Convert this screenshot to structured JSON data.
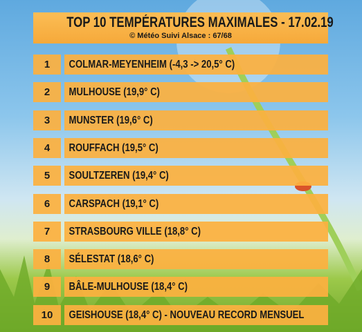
{
  "header": {
    "title": "TOP 10 TEMPÉRATURES MAXIMALES - 17.02.19",
    "subtitle": "© Météo Suivi Alsace : 67/68"
  },
  "rows": [
    {
      "rank": "1",
      "label": "COLMAR-MEYENHEIM (-4,3 -> 20,5° C)"
    },
    {
      "rank": "2",
      "label": "MULHOUSE (19,9° C)"
    },
    {
      "rank": "3",
      "label": "MUNSTER (19,6° C)"
    },
    {
      "rank": "4",
      "label": "ROUFFACH (19,5° C)"
    },
    {
      "rank": "5",
      "label": "SOULTZEREN (19,4° C)"
    },
    {
      "rank": "6",
      "label": "CARSPACH (19,1° C)"
    },
    {
      "rank": "7",
      "label": "STRASBOURG VILLE (18,8° C)"
    },
    {
      "rank": "8",
      "label": "SÉLESTAT (18,6° C)"
    },
    {
      "rank": "9",
      "label": "BÂLE-MULHOUSE (18,4° C)"
    },
    {
      "rank": "10",
      "label": "GEISHOUSE (18,4° C) - NOUVEAU RECORD MENSUEL"
    }
  ]
}
